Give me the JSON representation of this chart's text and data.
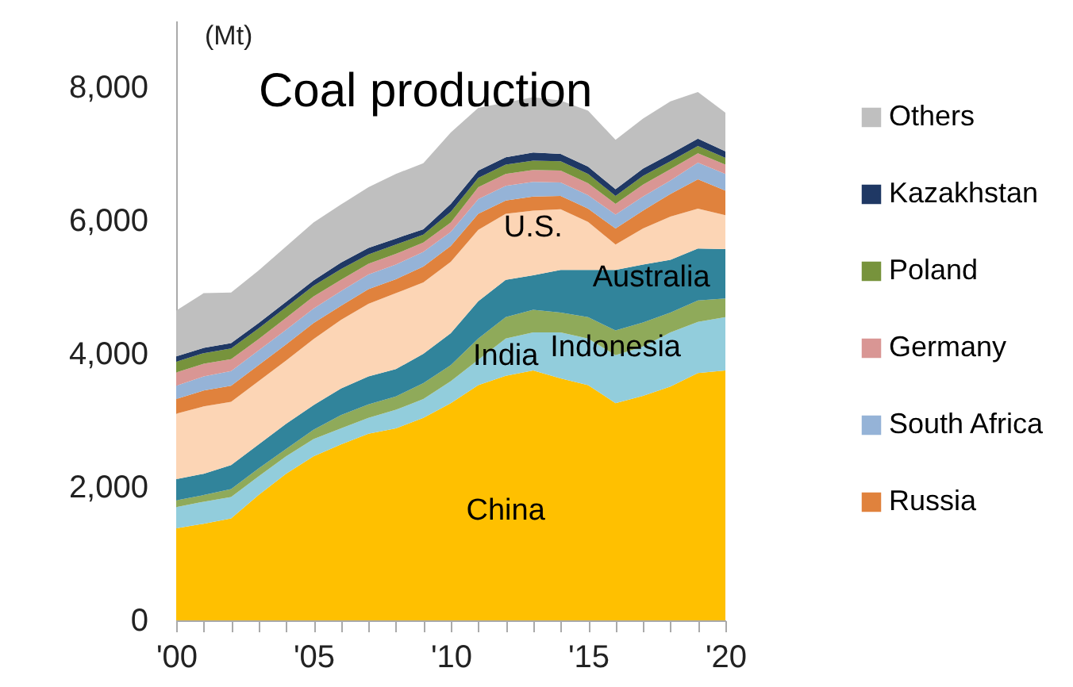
{
  "chart_data": {
    "type": "area",
    "stacked": true,
    "title": "Coal production",
    "ylabel": "(Mt)",
    "x": [
      2000,
      2001,
      2002,
      2003,
      2004,
      2005,
      2006,
      2007,
      2008,
      2009,
      2010,
      2011,
      2012,
      2013,
      2014,
      2015,
      2016,
      2017,
      2018,
      2019,
      2020
    ],
    "xlim": [
      2000,
      2020
    ],
    "xticks": [
      {
        "value": 2000,
        "label": "'00"
      },
      {
        "value": 2001,
        "label": null
      },
      {
        "value": 2002,
        "label": null
      },
      {
        "value": 2003,
        "label": null
      },
      {
        "value": 2004,
        "label": null
      },
      {
        "value": 2005,
        "label": "'05"
      },
      {
        "value": 2006,
        "label": null
      },
      {
        "value": 2007,
        "label": null
      },
      {
        "value": 2008,
        "label": null
      },
      {
        "value": 2009,
        "label": null
      },
      {
        "value": 2010,
        "label": "'10"
      },
      {
        "value": 2011,
        "label": null
      },
      {
        "value": 2012,
        "label": null
      },
      {
        "value": 2013,
        "label": null
      },
      {
        "value": 2014,
        "label": null
      },
      {
        "value": 2015,
        "label": "'15"
      },
      {
        "value": 2016,
        "label": null
      },
      {
        "value": 2017,
        "label": null
      },
      {
        "value": 2018,
        "label": null
      },
      {
        "value": 2019,
        "label": null
      },
      {
        "value": 2020,
        "label": "'20"
      }
    ],
    "ylim": [
      0,
      9000
    ],
    "yticks": [
      0,
      {
        "value": 2000,
        "label": "2,000"
      },
      {
        "value": 4000,
        "label": "4,000"
      },
      {
        "value": 6000,
        "label": "6,000"
      },
      {
        "value": 8000,
        "label": "8,000"
      }
    ],
    "grid": false,
    "legend": "right",
    "series": [
      {
        "name": "China",
        "color": "#ffc000",
        "values": [
          1380,
          1450,
          1530,
          1880,
          2200,
          2460,
          2640,
          2800,
          2880,
          3040,
          3260,
          3530,
          3670,
          3750,
          3630,
          3530,
          3260,
          3370,
          3510,
          3710,
          3750
        ]
      },
      {
        "name": "India",
        "color": "#92cddc",
        "values": [
          320,
          330,
          320,
          280,
          260,
          260,
          240,
          240,
          280,
          280,
          330,
          380,
          560,
          570,
          690,
          700,
          720,
          740,
          810,
          770,
          800
        ]
      },
      {
        "name": "Indonesia",
        "color": "#8faa5a",
        "values": [
          100,
          100,
          120,
          120,
          110,
          140,
          200,
          200,
          200,
          240,
          240,
          320,
          320,
          340,
          300,
          320,
          370,
          360,
          300,
          320,
          280
        ]
      },
      {
        "name": "Australia",
        "color": "#31849b",
        "values": [
          320,
          320,
          360,
          360,
          380,
          370,
          400,
          420,
          410,
          440,
          480,
          560,
          560,
          520,
          640,
          710,
          910,
          870,
          790,
          780,
          740
        ]
      },
      {
        "name": "U.S.",
        "color": "#fcd5b5",
        "values": [
          980,
          1010,
          950,
          950,
          950,
          990,
          1030,
          1090,
          1140,
          1070,
          1070,
          1070,
          990,
          970,
          910,
          720,
          380,
          540,
          650,
          600,
          510
        ]
      },
      {
        "name": "Russia",
        "color": "#e0823d",
        "values": [
          220,
          240,
          240,
          240,
          240,
          240,
          210,
          220,
          210,
          240,
          240,
          240,
          200,
          210,
          200,
          200,
          240,
          270,
          340,
          440,
          370
        ]
      },
      {
        "name": "South Africa",
        "color": "#95b3d7",
        "values": [
          200,
          210,
          220,
          220,
          220,
          220,
          220,
          220,
          220,
          220,
          210,
          220,
          220,
          220,
          200,
          200,
          210,
          210,
          200,
          250,
          250
        ]
      },
      {
        "name": "Germany",
        "color": "#d99694",
        "values": [
          200,
          190,
          180,
          170,
          180,
          180,
          170,
          160,
          160,
          140,
          140,
          180,
          180,
          180,
          180,
          180,
          160,
          180,
          170,
          140,
          140
        ]
      },
      {
        "name": "Poland",
        "color": "#77933c",
        "values": [
          160,
          160,
          160,
          160,
          160,
          160,
          160,
          140,
          140,
          120,
          160,
          140,
          140,
          140,
          140,
          140,
          120,
          130,
          120,
          110,
          100
        ]
      },
      {
        "name": "Kazakhstan",
        "color": "#1f3864",
        "values": [
          80,
          80,
          80,
          80,
          80,
          80,
          100,
          100,
          90,
          80,
          120,
          110,
          110,
          120,
          110,
          110,
          100,
          110,
          110,
          110,
          100
        ]
      },
      {
        "name": "Others",
        "color": "#bfbfbf",
        "values": [
          690,
          820,
          760,
          790,
          830,
          870,
          870,
          910,
          970,
          990,
          1070,
          940,
          820,
          830,
          800,
          840,
          740,
          750,
          790,
          700,
          580
        ]
      }
    ]
  }
}
